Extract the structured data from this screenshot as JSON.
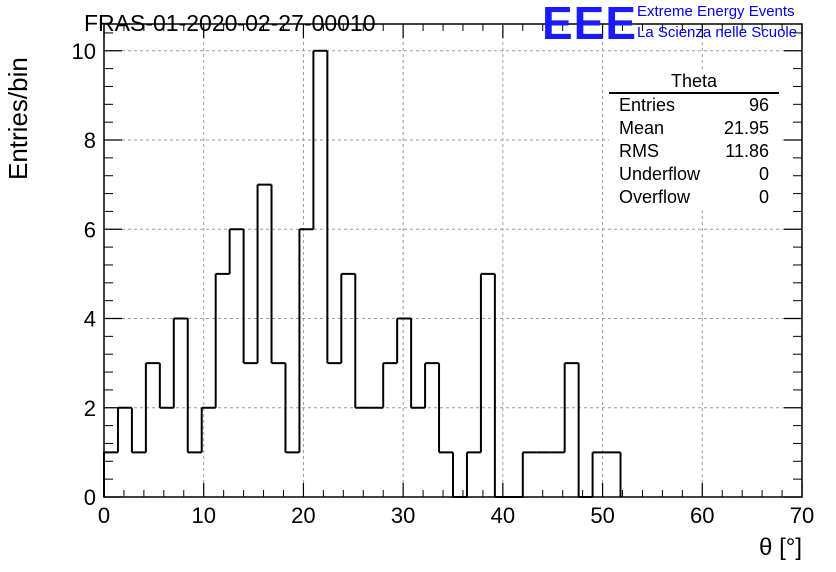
{
  "title": "FRAS-01-2020-02-27-00010",
  "logo": {
    "mark": "EEE",
    "line1": "Extreme Energy Events",
    "line2": "La Scienza nelle Scuole",
    "color": "#1a1aff"
  },
  "stats_box": {
    "name": "Theta",
    "rows": [
      {
        "label": "Entries",
        "value": "96"
      },
      {
        "label": "Mean",
        "value": "21.95"
      },
      {
        "label": "RMS",
        "value": "11.86"
      },
      {
        "label": "Underflow",
        "value": "0"
      },
      {
        "label": "Overflow",
        "value": "0"
      }
    ]
  },
  "chart_data": {
    "type": "bar",
    "style": "step-histogram",
    "title": "FRAS-01-2020-02-27-00010",
    "xlabel": "θ [°]",
    "ylabel": "Entries/bin",
    "xlim": [
      0,
      70
    ],
    "ylim": [
      0,
      10.6
    ],
    "xticks": [
      0,
      10,
      20,
      30,
      40,
      50,
      60,
      70
    ],
    "yticks": [
      0,
      2,
      4,
      6,
      8,
      10
    ],
    "grid": true,
    "bin_edges": [
      0,
      1.4,
      2.8,
      4.2,
      5.6,
      7.0,
      8.4,
      9.8,
      11.2,
      12.6,
      14.0,
      15.4,
      16.8,
      18.2,
      19.6,
      21.0,
      22.4,
      23.8,
      25.2,
      26.6,
      28.0,
      29.4,
      30.8,
      32.2,
      33.6,
      35.0,
      36.4,
      37.8,
      39.2,
      40.6,
      42.0,
      43.4,
      44.8,
      46.2,
      47.6,
      49.0,
      50.4,
      51.8
    ],
    "values": [
      1,
      2,
      1,
      3,
      2,
      4,
      1,
      2,
      5,
      6,
      3,
      7,
      3,
      1,
      6,
      10,
      3,
      5,
      2,
      2,
      3,
      4,
      2,
      3,
      1,
      0,
      1,
      5,
      0,
      0,
      1,
      1,
      1,
      3,
      0,
      1,
      1
    ],
    "line_color": "#000000"
  }
}
